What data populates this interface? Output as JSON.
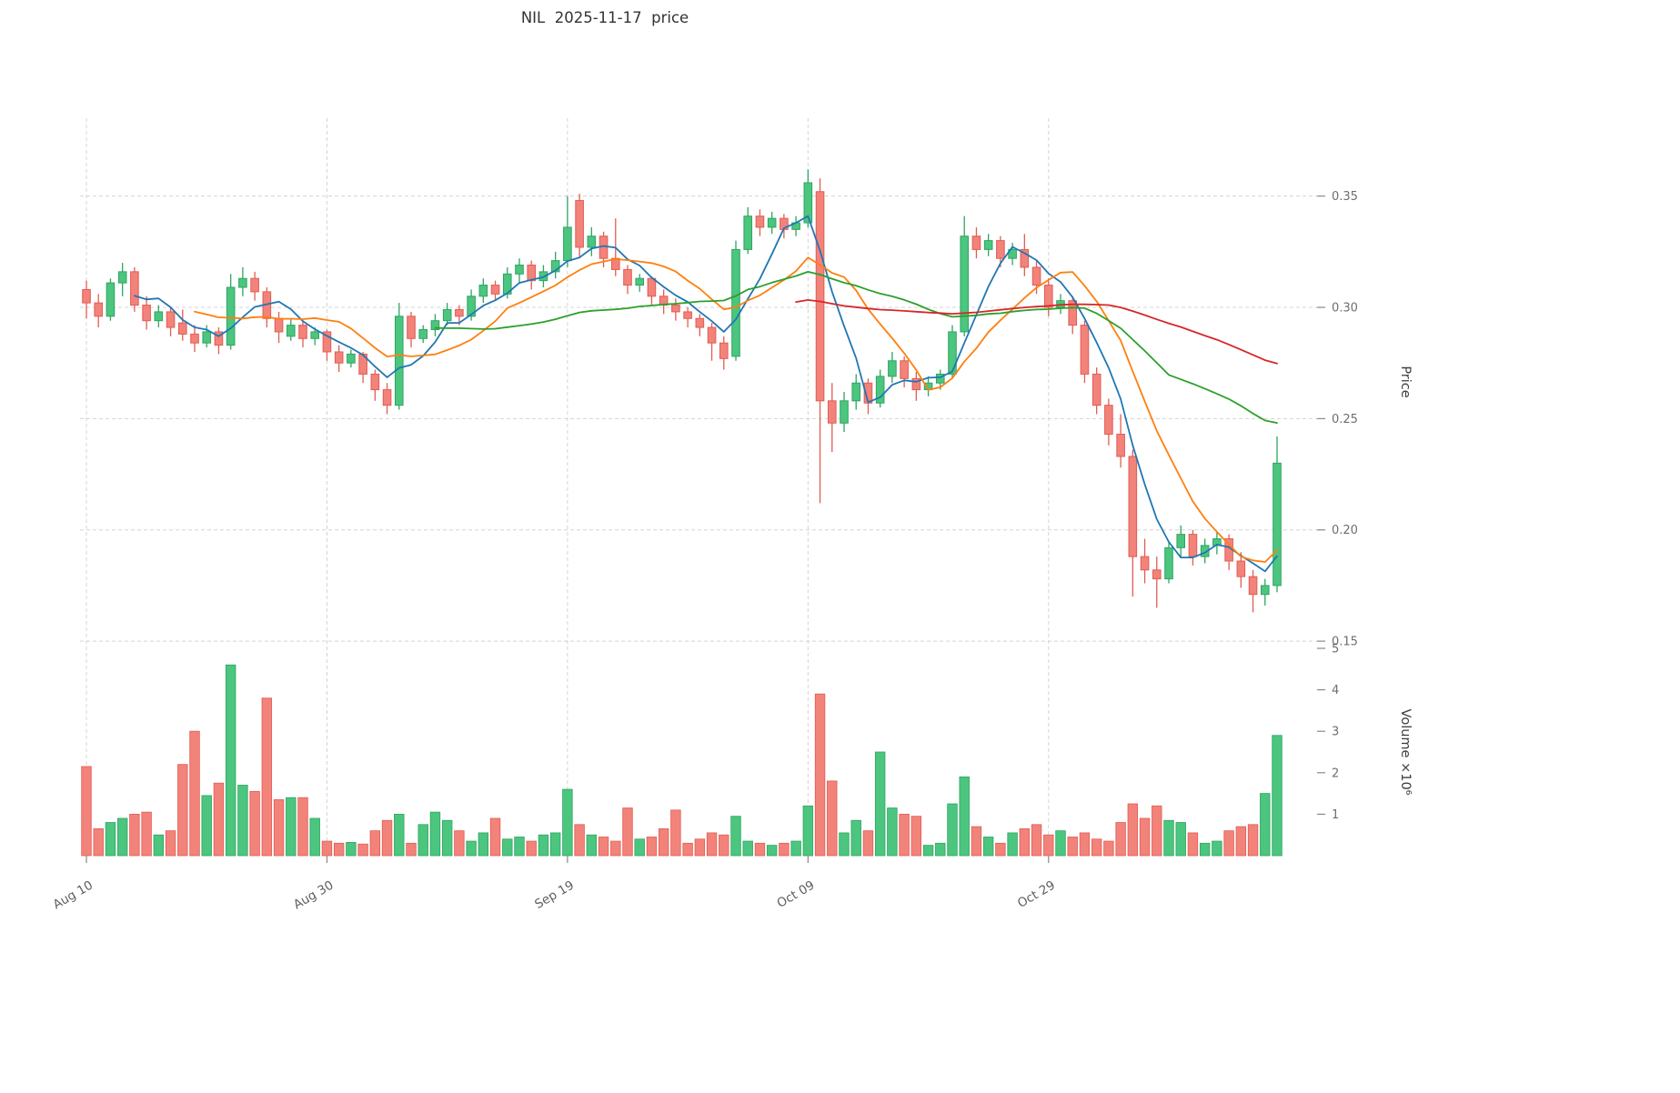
{
  "chart_data": {
    "type": "candlestick",
    "title": "NIL  2025-11-17  price",
    "right_axis_label_price": "Price",
    "right_axis_label_volume": "Volume ×10⁶",
    "price_ticks": [
      "0.15",
      "0.20",
      "0.25",
      "0.30",
      "0.35"
    ],
    "price_tick_values": [
      0.15,
      0.2,
      0.25,
      0.3,
      0.35
    ],
    "volume_ticks": [
      1,
      2,
      3,
      4,
      5
    ],
    "x_ticks": [
      {
        "index": 0,
        "label": "Aug 10"
      },
      {
        "index": 20,
        "label": "Aug 30"
      },
      {
        "index": 40,
        "label": "Sep 19"
      },
      {
        "index": 60,
        "label": "Oct 09"
      },
      {
        "index": 80,
        "label": "Oct 29"
      }
    ],
    "ylim": [
      0.148,
      0.385
    ],
    "volume_ylim": [
      0,
      5
    ],
    "volume_unit": 1000000,
    "legend_position": "none",
    "grid": "dashed",
    "moving_averages": [
      {
        "window": 5,
        "color": "#1f77b4"
      },
      {
        "window": 10,
        "color": "#ff7f0e"
      },
      {
        "window": 30,
        "color": "#2ca02c"
      },
      {
        "window": 60,
        "color": "#d62728"
      }
    ],
    "colors": {
      "up": "#4cc57f",
      "up_edge": "#2ea561",
      "down": "#f2837b",
      "down_edge": "#e25c52",
      "grid": "#d4d4d4",
      "tick_text": "#6e6e6e",
      "title_text": "#333333"
    },
    "series": {
      "open": [
        0.308,
        0.302,
        0.296,
        0.311,
        0.316,
        0.301,
        0.294,
        0.298,
        0.293,
        0.288,
        0.284,
        0.289,
        0.283,
        0.309,
        0.313,
        0.307,
        0.295,
        0.287,
        0.292,
        0.286,
        0.289,
        0.28,
        0.275,
        0.279,
        0.27,
        0.263,
        0.256,
        0.296,
        0.286,
        0.29,
        0.294,
        0.299,
        0.296,
        0.305,
        0.31,
        0.306,
        0.315,
        0.319,
        0.312,
        0.316,
        0.321,
        0.348,
        0.327,
        0.332,
        0.322,
        0.317,
        0.31,
        0.313,
        0.305,
        0.301,
        0.298,
        0.295,
        0.291,
        0.284,
        0.278,
        0.326,
        0.341,
        0.336,
        0.34,
        0.335,
        0.338,
        0.352,
        0.258,
        0.248,
        0.258,
        0.266,
        0.257,
        0.269,
        0.276,
        0.268,
        0.263,
        0.266,
        0.27,
        0.289,
        0.332,
        0.326,
        0.33,
        0.322,
        0.326,
        0.318,
        0.31,
        0.3,
        0.303,
        0.292,
        0.27,
        0.256,
        0.243,
        0.233,
        0.188,
        0.182,
        0.178,
        0.192,
        0.198,
        0.188,
        0.193,
        0.196,
        0.186,
        0.179,
        0.171,
        0.175
      ],
      "high": [
        0.312,
        0.306,
        0.313,
        0.32,
        0.318,
        0.305,
        0.301,
        0.3,
        0.299,
        0.292,
        0.292,
        0.291,
        0.315,
        0.318,
        0.316,
        0.309,
        0.298,
        0.295,
        0.294,
        0.291,
        0.29,
        0.283,
        0.281,
        0.28,
        0.272,
        0.266,
        0.302,
        0.298,
        0.292,
        0.297,
        0.302,
        0.301,
        0.308,
        0.313,
        0.312,
        0.318,
        0.322,
        0.321,
        0.319,
        0.325,
        0.35,
        0.351,
        0.336,
        0.334,
        0.34,
        0.319,
        0.315,
        0.314,
        0.308,
        0.304,
        0.3,
        0.297,
        0.293,
        0.287,
        0.33,
        0.345,
        0.344,
        0.343,
        0.342,
        0.341,
        0.362,
        0.358,
        0.266,
        0.262,
        0.27,
        0.268,
        0.272,
        0.28,
        0.278,
        0.271,
        0.269,
        0.272,
        0.292,
        0.341,
        0.336,
        0.333,
        0.332,
        0.329,
        0.333,
        0.321,
        0.313,
        0.306,
        0.305,
        0.294,
        0.273,
        0.259,
        0.252,
        0.236,
        0.196,
        0.188,
        0.195,
        0.202,
        0.2,
        0.196,
        0.199,
        0.198,
        0.19,
        0.182,
        0.178,
        0.242
      ],
      "low": [
        0.295,
        0.291,
        0.294,
        0.305,
        0.298,
        0.29,
        0.291,
        0.287,
        0.285,
        0.28,
        0.282,
        0.279,
        0.281,
        0.305,
        0.303,
        0.291,
        0.284,
        0.285,
        0.282,
        0.283,
        0.276,
        0.271,
        0.273,
        0.266,
        0.258,
        0.252,
        0.254,
        0.282,
        0.284,
        0.287,
        0.292,
        0.292,
        0.294,
        0.302,
        0.303,
        0.304,
        0.311,
        0.308,
        0.309,
        0.313,
        0.318,
        0.322,
        0.323,
        0.318,
        0.314,
        0.306,
        0.307,
        0.301,
        0.297,
        0.294,
        0.291,
        0.287,
        0.276,
        0.272,
        0.276,
        0.324,
        0.332,
        0.333,
        0.331,
        0.332,
        0.336,
        0.212,
        0.235,
        0.244,
        0.254,
        0.252,
        0.255,
        0.266,
        0.264,
        0.258,
        0.26,
        0.263,
        0.268,
        0.287,
        0.322,
        0.323,
        0.318,
        0.319,
        0.314,
        0.306,
        0.296,
        0.297,
        0.288,
        0.266,
        0.252,
        0.238,
        0.228,
        0.17,
        0.176,
        0.165,
        0.176,
        0.188,
        0.184,
        0.185,
        0.189,
        0.182,
        0.174,
        0.163,
        0.166,
        0.172
      ],
      "close": [
        0.302,
        0.296,
        0.311,
        0.316,
        0.301,
        0.294,
        0.298,
        0.291,
        0.288,
        0.284,
        0.289,
        0.283,
        0.309,
        0.313,
        0.307,
        0.295,
        0.289,
        0.292,
        0.286,
        0.289,
        0.28,
        0.275,
        0.279,
        0.27,
        0.263,
        0.256,
        0.296,
        0.286,
        0.29,
        0.294,
        0.299,
        0.296,
        0.305,
        0.31,
        0.306,
        0.315,
        0.319,
        0.312,
        0.316,
        0.321,
        0.336,
        0.327,
        0.332,
        0.322,
        0.317,
        0.31,
        0.313,
        0.305,
        0.301,
        0.298,
        0.295,
        0.291,
        0.284,
        0.277,
        0.326,
        0.341,
        0.336,
        0.34,
        0.335,
        0.338,
        0.356,
        0.258,
        0.248,
        0.258,
        0.266,
        0.257,
        0.269,
        0.276,
        0.268,
        0.263,
        0.266,
        0.27,
        0.289,
        0.332,
        0.326,
        0.33,
        0.322,
        0.326,
        0.318,
        0.31,
        0.3,
        0.303,
        0.292,
        0.27,
        0.256,
        0.243,
        0.233,
        0.188,
        0.182,
        0.178,
        0.192,
        0.198,
        0.188,
        0.193,
        0.196,
        0.186,
        0.179,
        0.171,
        0.175,
        0.23
      ],
      "volume_millions": [
        2.15,
        0.65,
        0.8,
        0.9,
        1.0,
        1.05,
        0.5,
        0.6,
        2.2,
        3.0,
        1.45,
        1.75,
        4.6,
        1.7,
        1.55,
        3.8,
        1.35,
        1.4,
        1.4,
        0.9,
        0.35,
        0.3,
        0.32,
        0.28,
        0.6,
        0.85,
        1.0,
        0.3,
        0.75,
        1.05,
        0.85,
        0.6,
        0.35,
        0.55,
        0.9,
        0.4,
        0.45,
        0.35,
        0.5,
        0.55,
        1.6,
        0.75,
        0.5,
        0.45,
        0.35,
        1.15,
        0.4,
        0.45,
        0.65,
        1.1,
        0.3,
        0.4,
        0.55,
        0.5,
        0.95,
        0.35,
        0.3,
        0.25,
        0.3,
        0.35,
        1.2,
        3.9,
        1.8,
        0.55,
        0.85,
        0.6,
        2.5,
        1.15,
        1.0,
        0.95,
        0.25,
        0.3,
        1.25,
        1.9,
        0.7,
        0.45,
        0.3,
        0.55,
        0.65,
        0.75,
        0.5,
        0.6,
        0.45,
        0.55,
        0.4,
        0.35,
        0.8,
        1.25,
        0.9,
        1.2,
        0.85,
        0.8,
        0.55,
        0.3,
        0.35,
        0.6,
        0.7,
        0.75,
        1.5,
        2.9
      ]
    }
  }
}
